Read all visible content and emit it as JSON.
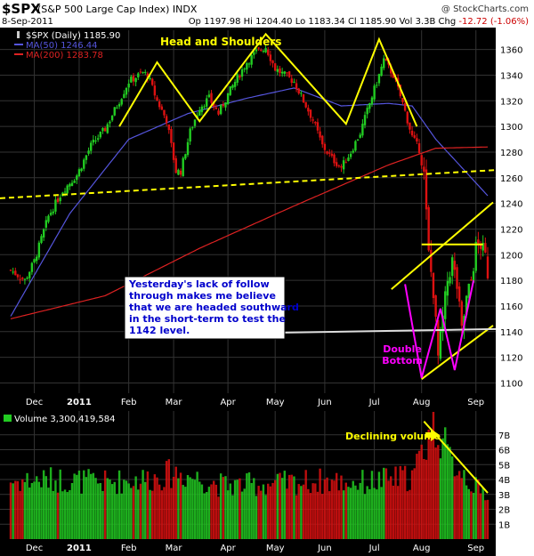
{
  "header": {
    "symbol": "$SPX",
    "name": "(S&P 500 Large Cap Index)",
    "exchange": "INDX",
    "brand": "@ StockCharts.com",
    "date": "8-Sep-2011",
    "open_label": "Op",
    "open": "1197.98",
    "high_label": "Hi",
    "high": "1204.40",
    "low_label": "Lo",
    "low": "1183.34",
    "close_label": "Cl",
    "close": "1185.90",
    "vol_label": "Vol",
    "vol": "3.3B",
    "chg_label": "Chg",
    "chg": "-12.72 (-1.06%)"
  },
  "colors": {
    "background": "#000000",
    "grid": "#333333",
    "up": "#22cc22",
    "down": "#dd1111",
    "ma50": "#5555dd",
    "ma200": "#dd2222",
    "annotation": "#ffff00",
    "double_bottom": "#ff00ff"
  },
  "chart_data": [
    {
      "type": "candlestick",
      "legend": [
        {
          "label": "$SPX (Daily) 1185.90",
          "color": "#ffffff",
          "swatch": "candle"
        },
        {
          "label": "MA(50) 1246.44",
          "color": "#5555dd",
          "swatch": "line"
        },
        {
          "label": "MA(200) 1283.78",
          "color": "#dd2222",
          "swatch": "line"
        }
      ],
      "ylim": [
        1092,
        1375
      ],
      "yticks": [
        1100,
        1120,
        1140,
        1160,
        1180,
        1200,
        1220,
        1240,
        1260,
        1280,
        1300,
        1320,
        1340,
        1360
      ],
      "months": [
        {
          "label": "Dec",
          "day": 10
        },
        {
          "label": "2011",
          "day": 29,
          "bold": true
        },
        {
          "label": "Feb",
          "day": 50
        },
        {
          "label": "Mar",
          "day": 69
        },
        {
          "label": "Apr",
          "day": 92
        },
        {
          "label": "May",
          "day": 112
        },
        {
          "label": "Jun",
          "day": 133
        },
        {
          "label": "Jul",
          "day": 154
        },
        {
          "label": "Aug",
          "day": 174
        },
        {
          "label": "Sep",
          "day": 197
        }
      ],
      "price_anchors": [
        [
          0,
          1188
        ],
        [
          6,
          1180
        ],
        [
          10,
          1195
        ],
        [
          16,
          1230
        ],
        [
          22,
          1250
        ],
        [
          28,
          1262
        ],
        [
          34,
          1285
        ],
        [
          40,
          1298
        ],
        [
          46,
          1320
        ],
        [
          50,
          1335
        ],
        [
          56,
          1342
        ],
        [
          58,
          1340
        ],
        [
          62,
          1320
        ],
        [
          66,
          1305
        ],
        [
          70,
          1265
        ],
        [
          72,
          1265
        ],
        [
          76,
          1296
        ],
        [
          80,
          1315
        ],
        [
          84,
          1322
        ],
        [
          88,
          1310
        ],
        [
          92,
          1325
        ],
        [
          96,
          1338
        ],
        [
          100,
          1350
        ],
        [
          104,
          1358
        ],
        [
          108,
          1362
        ],
        [
          112,
          1345
        ],
        [
          116,
          1340
        ],
        [
          120,
          1335
        ],
        [
          124,
          1320
        ],
        [
          128,
          1305
        ],
        [
          132,
          1285
        ],
        [
          136,
          1275
        ],
        [
          140,
          1268
        ],
        [
          144,
          1280
        ],
        [
          148,
          1295
        ],
        [
          152,
          1318
        ],
        [
          156,
          1340
        ],
        [
          158,
          1352
        ],
        [
          162,
          1340
        ],
        [
          166,
          1318
        ],
        [
          170,
          1292
        ],
        [
          173,
          1282
        ],
        [
          175,
          1262
        ],
        [
          177,
          1200
        ],
        [
          179,
          1172
        ],
        [
          181,
          1120
        ],
        [
          183,
          1150
        ],
        [
          185,
          1180
        ],
        [
          187,
          1195
        ],
        [
          189,
          1175
        ],
        [
          191,
          1140
        ],
        [
          193,
          1165
        ],
        [
          195,
          1180
        ],
        [
          197,
          1205
        ],
        [
          199,
          1208
        ],
        [
          201,
          1198
        ],
        [
          202,
          1186
        ]
      ],
      "ma50_anchors": [
        [
          0,
          1152
        ],
        [
          25,
          1232
        ],
        [
          50,
          1290
        ],
        [
          75,
          1310
        ],
        [
          100,
          1322
        ],
        [
          120,
          1330
        ],
        [
          140,
          1316
        ],
        [
          160,
          1318
        ],
        [
          170,
          1316
        ],
        [
          180,
          1290
        ],
        [
          190,
          1270
        ],
        [
          202,
          1246
        ]
      ],
      "ma200_anchors": [
        [
          0,
          1150
        ],
        [
          40,
          1168
        ],
        [
          80,
          1205
        ],
        [
          120,
          1238
        ],
        [
          160,
          1270
        ],
        [
          180,
          1283
        ],
        [
          202,
          1284
        ]
      ],
      "annotations": {
        "head_and_shoulders_label": "Head and Shoulders",
        "yesterday_note": "Yesterday's lack of follow through makes me believe that we are headed southward in the short-term to test the 1142 level.",
        "double_bottom_label": "Double Bottom",
        "support_level": 1142,
        "resistance_level": 1208,
        "neckline": [
          [
            0,
            1244
          ],
          [
            202,
            1266
          ]
        ],
        "hs_lines": [
          [
            [
              46,
              1300
            ],
            [
              62,
              1350
            ],
            [
              80,
              1304
            ],
            [
              108,
              1372
            ],
            [
              142,
              1302
            ],
            [
              156,
              1368
            ],
            [
              172,
              1300
            ]
          ]
        ],
        "channel_lower": [
          [
            174,
            1103
          ],
          [
            202,
            1142
          ]
        ],
        "channel_upper": [
          [
            168,
            1180
          ],
          [
            202,
            1238
          ]
        ],
        "double_bottom_w": [
          [
            167,
            1177
          ],
          [
            174,
            1104
          ],
          [
            182,
            1158
          ],
          [
            188,
            1110
          ],
          [
            196,
            1180
          ]
        ]
      }
    },
    {
      "type": "bar",
      "title": "Volume 3,300,419,584",
      "ylim": [
        0,
        8.6
      ],
      "yticks": [
        {
          "v": 1,
          "label": "1B"
        },
        {
          "v": 2,
          "label": "2B"
        },
        {
          "v": 3,
          "label": "3B"
        },
        {
          "v": 4,
          "label": "4B"
        },
        {
          "v": 5,
          "label": "5B"
        },
        {
          "v": 6,
          "label": "6B"
        },
        {
          "v": 7,
          "label": "7B"
        }
      ],
      "volume_anchors": [
        [
          0,
          4.0
        ],
        [
          20,
          4.1
        ],
        [
          40,
          3.9
        ],
        [
          60,
          4.2
        ],
        [
          70,
          4.6
        ],
        [
          90,
          3.7
        ],
        [
          110,
          3.8
        ],
        [
          130,
          4.0
        ],
        [
          150,
          3.9
        ],
        [
          170,
          4.3
        ],
        [
          175,
          6.2
        ],
        [
          178,
          7.8
        ],
        [
          182,
          7.2
        ],
        [
          186,
          5.4
        ],
        [
          190,
          5.0
        ],
        [
          195,
          3.9
        ],
        [
          199,
          3.2
        ],
        [
          202,
          3.3
        ]
      ],
      "annotation": "Declining volume",
      "declining_line": [
        [
          175,
          7.9
        ],
        [
          202,
          3.1
        ]
      ]
    }
  ]
}
